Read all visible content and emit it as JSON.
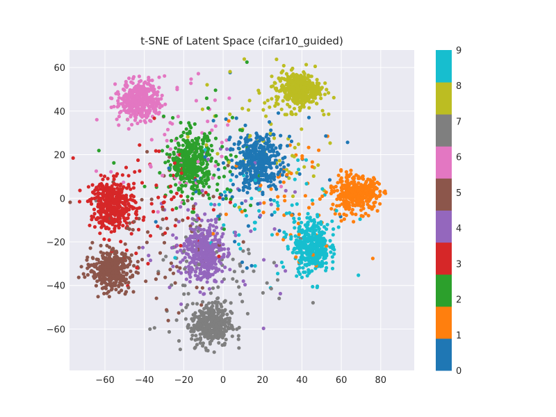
{
  "chart_data": {
    "type": "scatter",
    "title": "t-SNE of Latent Space (cifar10_guided)",
    "xlabel": "",
    "ylabel": "",
    "xlim": [
      -78,
      97
    ],
    "ylim": [
      -79,
      68
    ],
    "xticks": [
      -60,
      -40,
      -20,
      0,
      20,
      40,
      60,
      80
    ],
    "yticks": [
      -60,
      -40,
      -20,
      0,
      20,
      40,
      60
    ],
    "xtick_labels": [
      "−60",
      "−40",
      "−20",
      "0",
      "20",
      "40",
      "60",
      "80"
    ],
    "ytick_labels": [
      "−60",
      "−40",
      "−20",
      "0",
      "20",
      "40",
      "60"
    ],
    "grid": true,
    "style": "seaborn-darkgrid",
    "colorbar": {
      "colormap": "tab10",
      "min": 0,
      "max": 9,
      "ticks": [
        "0",
        "1",
        "2",
        "3",
        "4",
        "5",
        "6",
        "7",
        "8",
        "9"
      ],
      "colors": [
        "#1f77b4",
        "#ff7f0e",
        "#2ca02c",
        "#d62728",
        "#9467bd",
        "#8c564b",
        "#e377c2",
        "#7f7f7f",
        "#bcbd22",
        "#17becf"
      ]
    },
    "clusters": [
      {
        "label": 0,
        "center": [
          18,
          17
        ],
        "spread": [
          10,
          11
        ]
      },
      {
        "label": 1,
        "center": [
          68,
          2
        ],
        "spread": [
          10,
          7
        ]
      },
      {
        "label": 2,
        "center": [
          -16,
          16
        ],
        "spread": [
          9,
          12
        ]
      },
      {
        "label": 3,
        "center": [
          -56,
          -3
        ],
        "spread": [
          10,
          10
        ]
      },
      {
        "label": 4,
        "center": [
          -10,
          -25
        ],
        "spread": [
          9,
          12
        ]
      },
      {
        "label": 5,
        "center": [
          -57,
          -33
        ],
        "spread": [
          9,
          8
        ]
      },
      {
        "label": 6,
        "center": [
          -42,
          45
        ],
        "spread": [
          9,
          8
        ]
      },
      {
        "label": 7,
        "center": [
          -6,
          -58
        ],
        "spread": [
          9,
          9
        ]
      },
      {
        "label": 8,
        "center": [
          38,
          50
        ],
        "spread": [
          10,
          7
        ]
      },
      {
        "label": 9,
        "center": [
          45,
          -22
        ],
        "spread": [
          8,
          11
        ]
      }
    ]
  }
}
